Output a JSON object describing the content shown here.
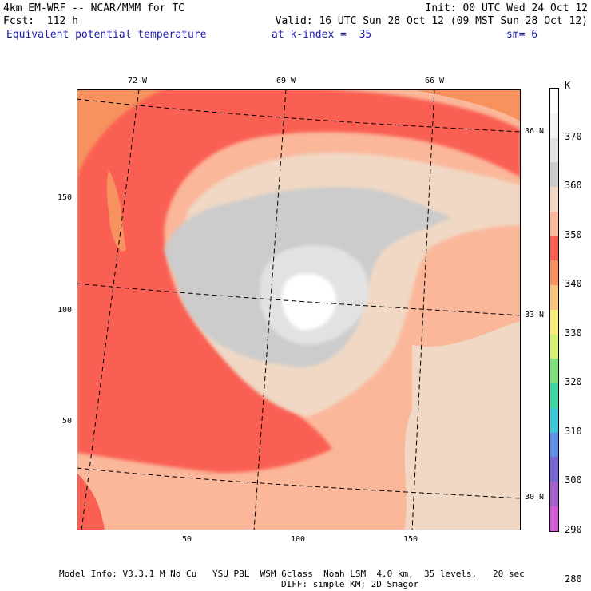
{
  "header": {
    "line1_left": "4km EM-WRF -- NCAR/MMM for TC",
    "line1_right": "Init: 00 UTC Wed 24 Oct 12",
    "line2_left": "Fcst:  112 h",
    "line2_right": "Valid: 16 UTC Sun 28 Oct 12 (09 MST Sun 28 Oct 12)",
    "field_name": "Equivalent potential temperature",
    "level": "at k-index =  35",
    "smoothing": "sm= 6"
  },
  "map": {
    "top_lon_labels": [
      "72 W",
      "69 W",
      "66 W"
    ],
    "right_lat_labels": [
      "36 N",
      "33 N",
      "30 N"
    ],
    "y_ticks": [
      "150",
      "100",
      "50"
    ],
    "x_ticks": [
      "50",
      "100",
      "150"
    ]
  },
  "colorbar": {
    "unit": "K",
    "labels": [
      "370",
      "360",
      "350",
      "340",
      "330",
      "320",
      "310",
      "300",
      "290",
      "280"
    ],
    "colors": [
      "#ffffff",
      "#f4f4f4",
      "#e2e2e2",
      "#cccccc",
      "#f0d8c4",
      "#fbb79a",
      "#fa5f52",
      "#f7925e",
      "#f9c57e",
      "#f7ed78",
      "#d4f06c",
      "#7ee07c",
      "#3ed6a0",
      "#3cc8d8",
      "#5f8ee6",
      "#7b66d8",
      "#a460cc",
      "#d25ad6"
    ],
    "palette": {
      "bg": "#fbb79a",
      "red": "#fa5f52",
      "orange": "#f7925e",
      "tan": "#f0d8c4",
      "gray": "#cccccc",
      "lightgray": "#e2e2e2",
      "white": "#ffffff"
    }
  },
  "footer": {
    "line1": "Model Info: V3.3.1 M No Cu   YSU PBL  WSM 6class  Noah LSM  4.0 km,  35 levels,   20 sec",
    "line2": "DIFF: simple KM; 2D Smagor"
  }
}
